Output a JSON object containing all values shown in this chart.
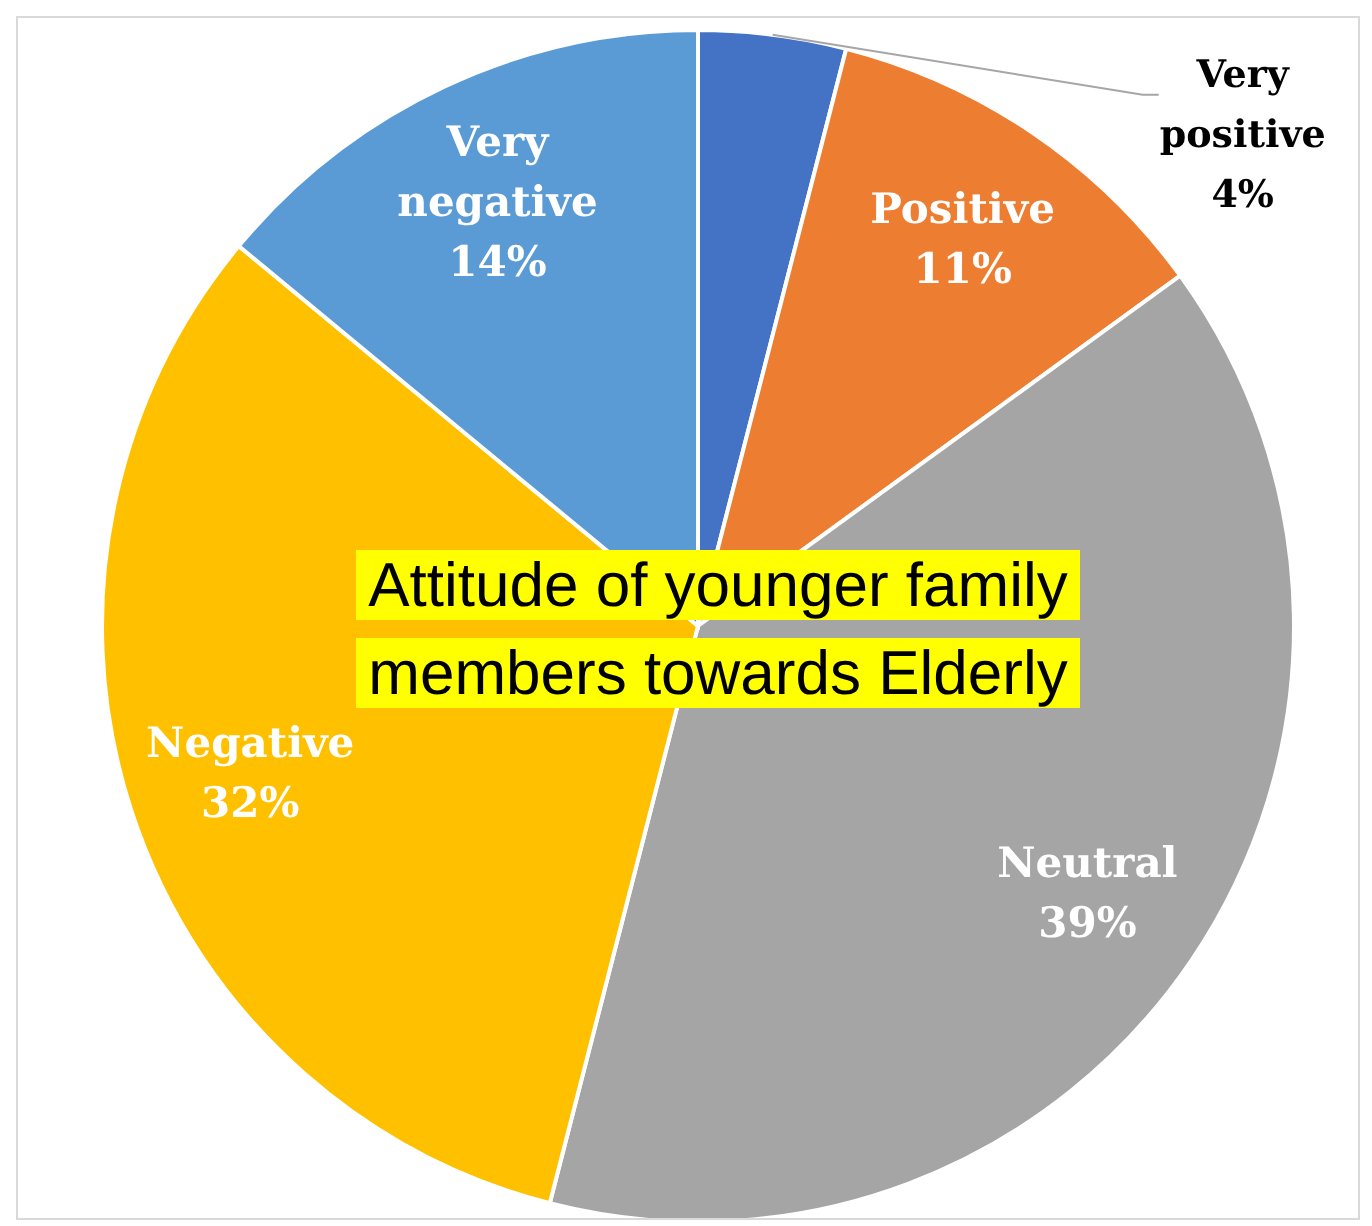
{
  "chart_data": {
    "type": "pie",
    "title": "Attitude of younger family members towards Elderly",
    "categories": [
      "Very positive",
      "Positive",
      "Neutral",
      "Negative",
      "Very negative"
    ],
    "values": [
      4,
      11,
      39,
      32,
      14
    ],
    "value_labels": [
      "4%",
      "11%",
      "39%",
      "32%",
      "14%"
    ],
    "colors": [
      "#4472c4",
      "#ed7d31",
      "#a5a5a5",
      "#ffc000",
      "#5b9bd5"
    ],
    "legend": false
  }
}
